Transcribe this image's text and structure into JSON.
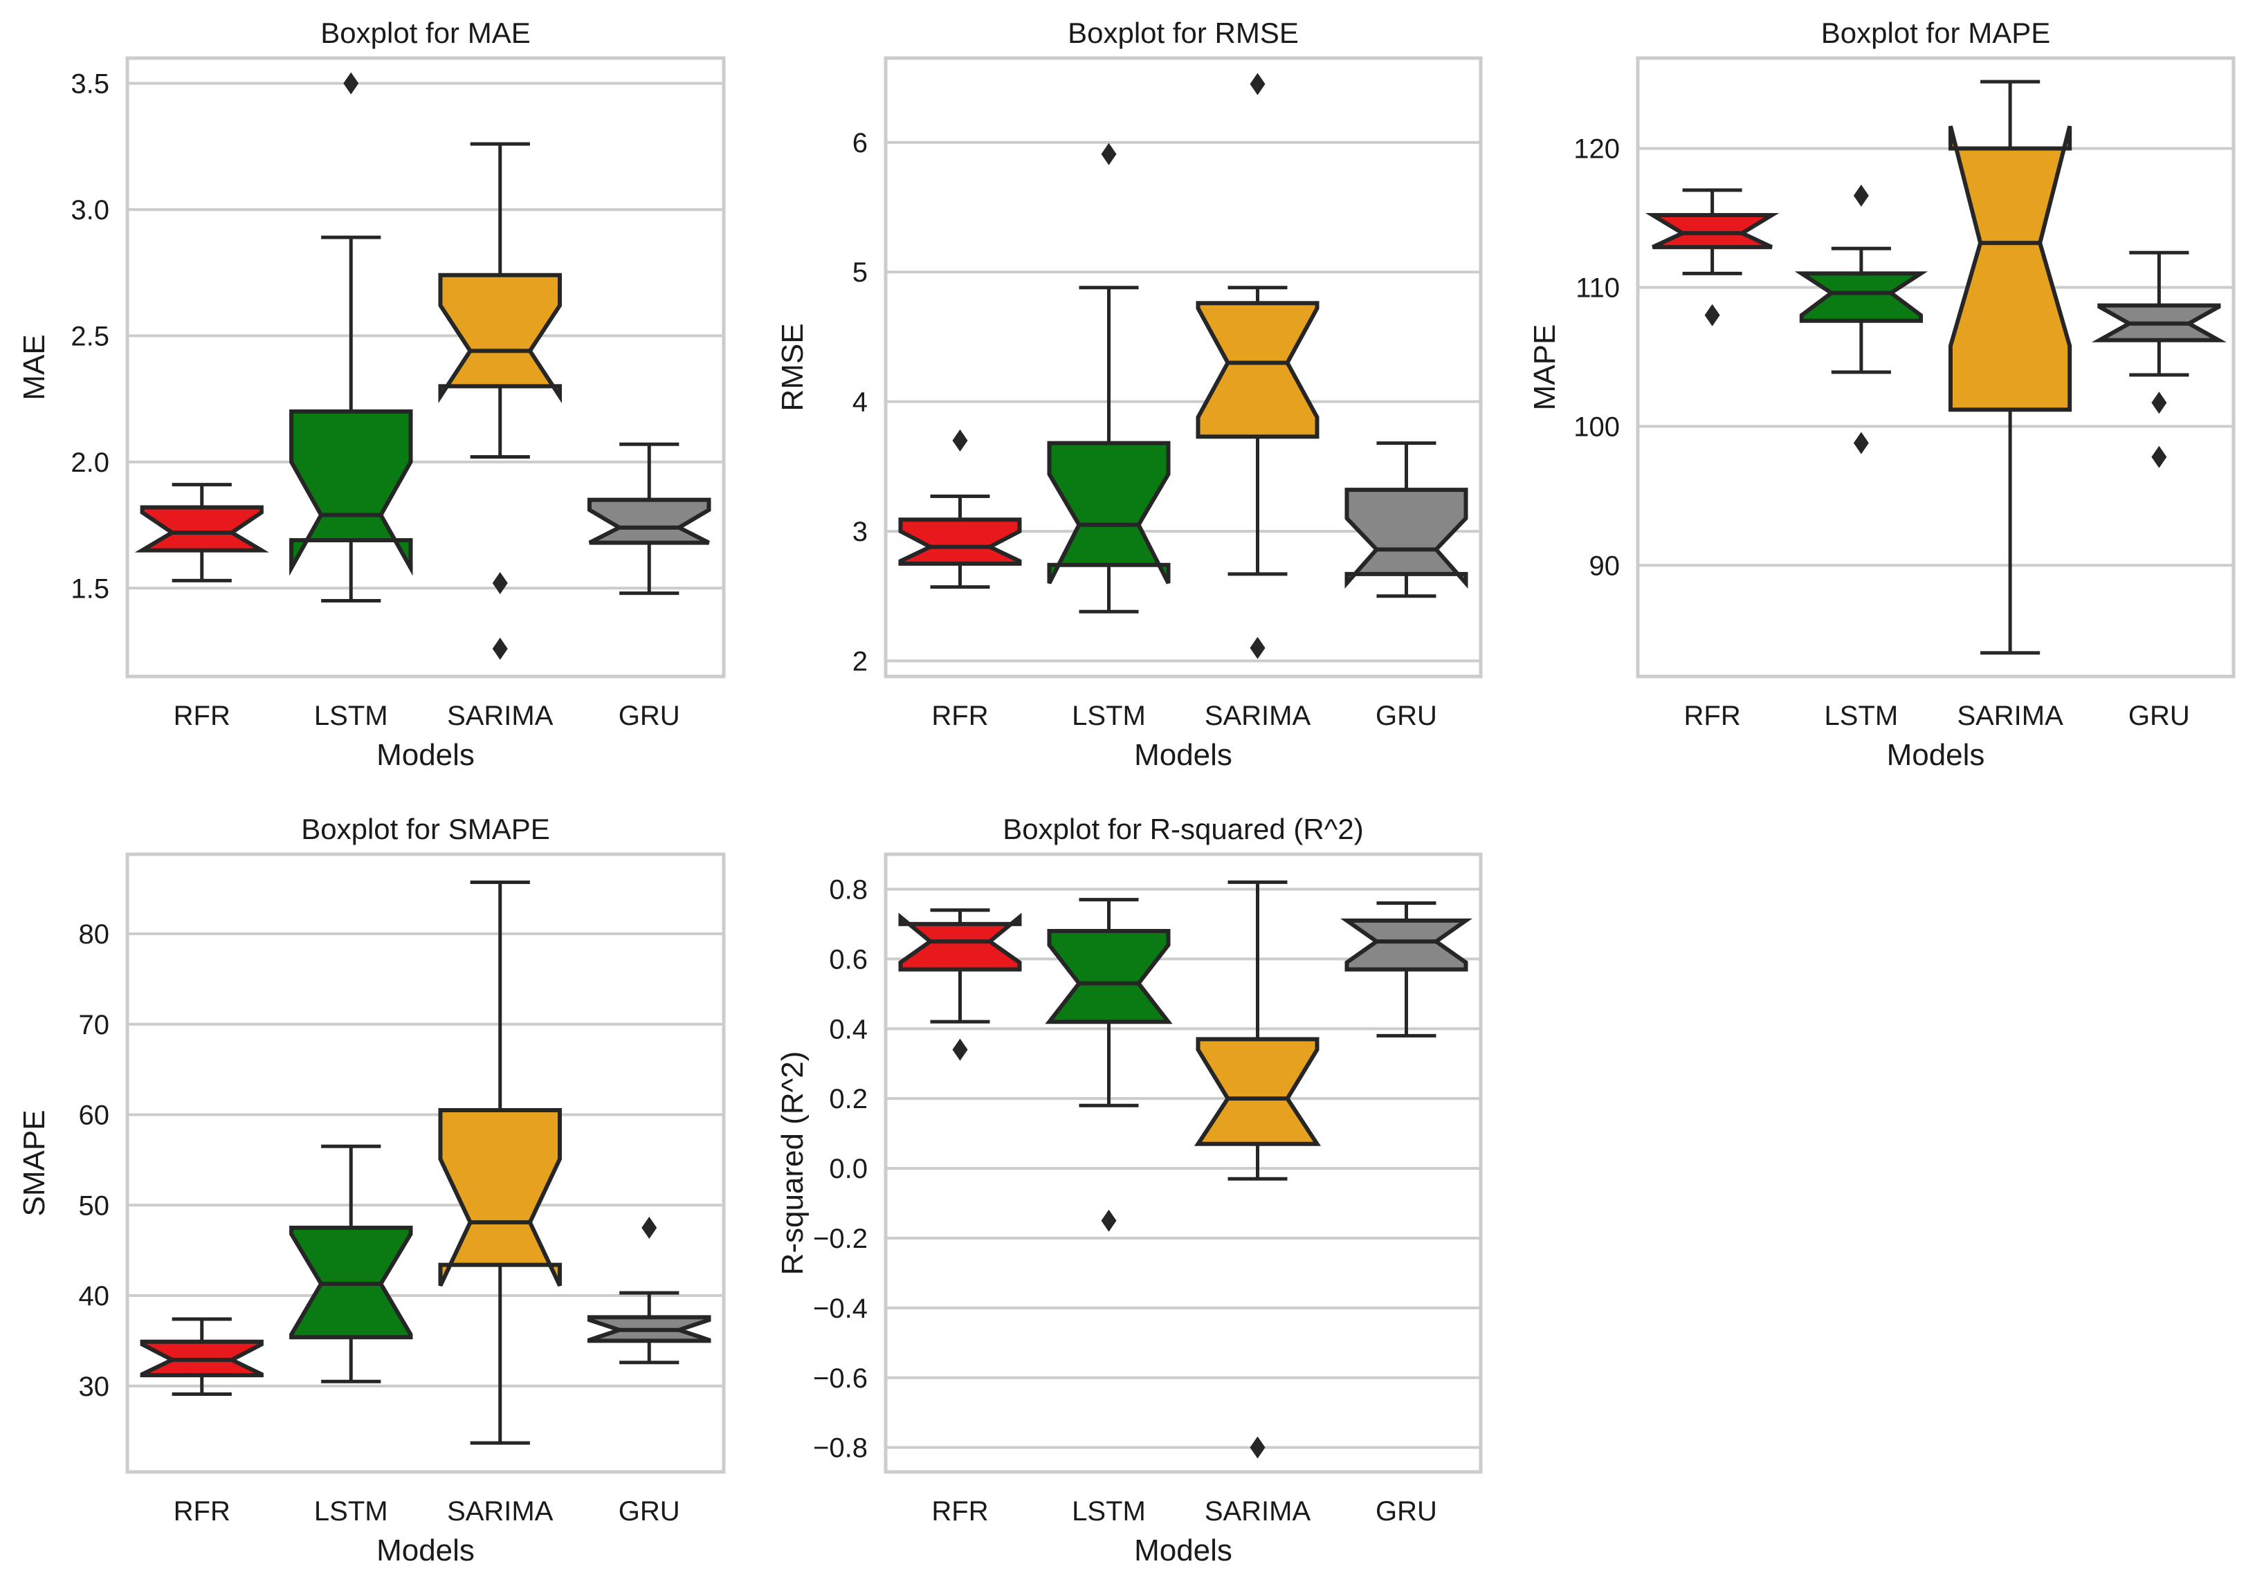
{
  "chart_data": [
    {
      "type": "boxplot",
      "title": "Boxplot for MAE",
      "xlabel": "Models",
      "ylabel": "MAE",
      "ylim": [
        1.15,
        3.6
      ],
      "yticks": [
        1.5,
        2.0,
        2.5,
        3.0,
        3.5
      ],
      "ytick_labels": [
        "1.5",
        "2.0",
        "2.5",
        "3.0",
        "3.5"
      ],
      "grid": "horizontal",
      "notched": true,
      "categories": [
        "RFR",
        "LSTM",
        "SARIMA",
        "GRU"
      ],
      "boxes": [
        {
          "model": "RFR",
          "whislo": 1.53,
          "q1": 1.65,
          "med": 1.72,
          "q3": 1.82,
          "whishi": 1.91,
          "notch_lo": 1.65,
          "notch_hi": 1.8,
          "fliers": []
        },
        {
          "model": "LSTM",
          "whislo": 1.45,
          "q1": 1.69,
          "med": 1.79,
          "q3": 2.2,
          "whishi": 2.89,
          "notch_lo": 1.58,
          "notch_hi": 2.0,
          "fliers": [
            3.5
          ]
        },
        {
          "model": "SARIMA",
          "whislo": 2.02,
          "q1": 2.3,
          "med": 2.44,
          "q3": 2.74,
          "whishi": 3.26,
          "notch_lo": 2.26,
          "notch_hi": 2.62,
          "fliers": [
            1.52,
            1.26
          ]
        },
        {
          "model": "GRU",
          "whislo": 1.48,
          "q1": 1.68,
          "med": 1.74,
          "q3": 1.85,
          "whishi": 2.07,
          "notch_lo": 1.68,
          "notch_hi": 1.81,
          "fliers": []
        }
      ]
    },
    {
      "type": "boxplot",
      "title": "Boxplot for RMSE",
      "xlabel": "Models",
      "ylabel": "RMSE",
      "ylim": [
        1.88,
        6.65
      ],
      "yticks": [
        2,
        3,
        4,
        5,
        6
      ],
      "ytick_labels": [
        "2",
        "3",
        "4",
        "5",
        "6"
      ],
      "grid": "horizontal",
      "notched": true,
      "categories": [
        "RFR",
        "LSTM",
        "SARIMA",
        "GRU"
      ],
      "boxes": [
        {
          "model": "RFR",
          "whislo": 2.57,
          "q1": 2.75,
          "med": 2.88,
          "q3": 3.09,
          "whishi": 3.27,
          "notch_lo": 2.77,
          "notch_hi": 3.0,
          "fliers": [
            3.7
          ]
        },
        {
          "model": "LSTM",
          "whislo": 2.38,
          "q1": 2.74,
          "med": 3.05,
          "q3": 3.68,
          "whishi": 4.88,
          "notch_lo": 2.6,
          "notch_hi": 3.44,
          "fliers": [
            5.91
          ]
        },
        {
          "model": "SARIMA",
          "whislo": 2.67,
          "q1": 3.73,
          "med": 4.3,
          "q3": 4.76,
          "whishi": 4.88,
          "notch_lo": 3.88,
          "notch_hi": 4.72,
          "fliers": [
            6.45,
            2.1
          ]
        },
        {
          "model": "GRU",
          "whislo": 2.5,
          "q1": 2.67,
          "med": 2.86,
          "q3": 3.32,
          "whishi": 3.68,
          "notch_lo": 2.6,
          "notch_hi": 3.1,
          "fliers": []
        }
      ]
    },
    {
      "type": "boxplot",
      "title": "Boxplot for MAPE",
      "xlabel": "Models",
      "ylabel": "MAPE",
      "ylim": [
        82,
        126.5
      ],
      "yticks": [
        90,
        100,
        110,
        120
      ],
      "ytick_labels": [
        "90",
        "100",
        "110",
        "120"
      ],
      "grid": "horizontal",
      "notched": true,
      "categories": [
        "RFR",
        "LSTM",
        "SARIMA",
        "GRU"
      ],
      "boxes": [
        {
          "model": "RFR",
          "whislo": 111.0,
          "q1": 112.9,
          "med": 113.9,
          "q3": 115.2,
          "whishi": 117.0,
          "notch_lo": 112.9,
          "notch_hi": 115.2,
          "fliers": [
            108.0
          ]
        },
        {
          "model": "LSTM",
          "whislo": 103.9,
          "q1": 107.6,
          "med": 109.6,
          "q3": 111.0,
          "whishi": 112.8,
          "notch_lo": 108.0,
          "notch_hi": 111.0,
          "fliers": [
            116.6,
            98.8
          ]
        },
        {
          "model": "SARIMA",
          "whislo": 83.7,
          "q1": 101.2,
          "med": 113.2,
          "q3": 120.0,
          "whishi": 124.8,
          "notch_lo": 105.8,
          "notch_hi": 121.6,
          "fliers": []
        },
        {
          "model": "GRU",
          "whislo": 103.7,
          "q1": 106.2,
          "med": 107.4,
          "q3": 108.7,
          "whishi": 112.5,
          "notch_lo": 106.2,
          "notch_hi": 108.6,
          "fliers": [
            101.7,
            97.8
          ]
        }
      ]
    },
    {
      "type": "boxplot",
      "title": "Boxplot for SMAPE",
      "xlabel": "Models",
      "ylabel": "SMAPE",
      "ylim": [
        20.5,
        88.8
      ],
      "yticks": [
        30,
        40,
        50,
        60,
        70,
        80
      ],
      "ytick_labels": [
        "30",
        "40",
        "50",
        "60",
        "70",
        "80"
      ],
      "grid": "horizontal",
      "notched": true,
      "categories": [
        "RFR",
        "LSTM",
        "SARIMA",
        "GRU"
      ],
      "boxes": [
        {
          "model": "RFR",
          "whislo": 29.1,
          "q1": 31.2,
          "med": 32.9,
          "q3": 34.9,
          "whishi": 37.4,
          "notch_lo": 31.3,
          "notch_hi": 34.6,
          "fliers": []
        },
        {
          "model": "LSTM",
          "whislo": 30.5,
          "q1": 35.4,
          "med": 41.3,
          "q3": 47.5,
          "whishi": 56.5,
          "notch_lo": 35.7,
          "notch_hi": 46.8,
          "fliers": []
        },
        {
          "model": "SARIMA",
          "whislo": 23.7,
          "q1": 43.4,
          "med": 48.1,
          "q3": 60.5,
          "whishi": 85.7,
          "notch_lo": 41.1,
          "notch_hi": 55.1,
          "fliers": []
        },
        {
          "model": "GRU",
          "whislo": 32.6,
          "q1": 35.0,
          "med": 36.2,
          "q3": 37.6,
          "whishi": 40.3,
          "notch_lo": 35.1,
          "notch_hi": 37.3,
          "fliers": [
            47.5
          ]
        }
      ]
    },
    {
      "type": "boxplot",
      "title": "Boxplot for R-squared (R^2)",
      "xlabel": "Models",
      "ylabel": "R-squared (R^2)",
      "ylim": [
        -0.87,
        0.9
      ],
      "yticks": [
        -0.8,
        -0.6,
        -0.4,
        -0.2,
        0.0,
        0.2,
        0.4,
        0.6,
        0.8
      ],
      "ytick_labels": [
        "−0.8",
        "−0.6",
        "−0.4",
        "−0.2",
        "0.0",
        "0.2",
        "0.4",
        "0.6",
        "0.8"
      ],
      "grid": "horizontal",
      "notched": true,
      "categories": [
        "RFR",
        "LSTM",
        "SARIMA",
        "GRU"
      ],
      "boxes": [
        {
          "model": "RFR",
          "whislo": 0.42,
          "q1": 0.57,
          "med": 0.65,
          "q3": 0.7,
          "whishi": 0.74,
          "notch_lo": 0.59,
          "notch_hi": 0.72,
          "fliers": [
            0.34
          ]
        },
        {
          "model": "LSTM",
          "whislo": 0.18,
          "q1": 0.42,
          "med": 0.53,
          "q3": 0.68,
          "whishi": 0.77,
          "notch_lo": 0.42,
          "notch_hi": 0.64,
          "fliers": [
            -0.15
          ]
        },
        {
          "model": "SARIMA",
          "whislo": -0.03,
          "q1": 0.07,
          "med": 0.2,
          "q3": 0.37,
          "whishi": 0.82,
          "notch_lo": 0.07,
          "notch_hi": 0.34,
          "fliers": [
            -0.8
          ]
        },
        {
          "model": "GRU",
          "whislo": 0.38,
          "q1": 0.57,
          "med": 0.65,
          "q3": 0.71,
          "whishi": 0.76,
          "notch_lo": 0.59,
          "notch_hi": 0.71,
          "fliers": []
        }
      ]
    }
  ],
  "colors": {
    "RFR": "#e8191c",
    "LSTM": "#0a7a12",
    "SARIMA": "#e6a11f",
    "GRU": "#878787",
    "outline": "#262626",
    "grid": "#cccccc",
    "spine": "#cccccc"
  }
}
